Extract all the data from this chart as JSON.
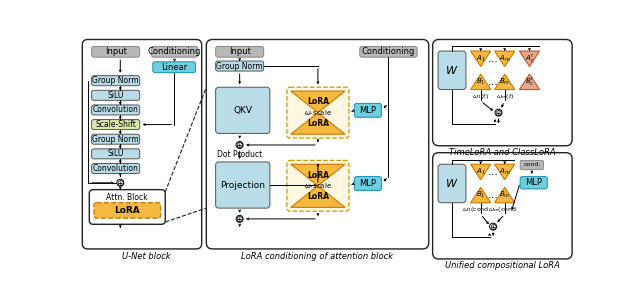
{
  "bg_color": "#ffffff",
  "light_blue": "#b8dde8",
  "light_blue2": "#b8dde8",
  "light_green": "#d8eaaa",
  "orange": "#f5b942",
  "salmon": "#e8a888",
  "gray_box": "#b8b8b8",
  "cyan_box": "#6ecfdf",
  "dark": "#222222",
  "title_unet": "U-Net block",
  "title_attention": "LoRA conditioning of attention block",
  "title_time": "TimeLoRA and ClassLoRA",
  "title_unified": "Unified compositional LoRA"
}
